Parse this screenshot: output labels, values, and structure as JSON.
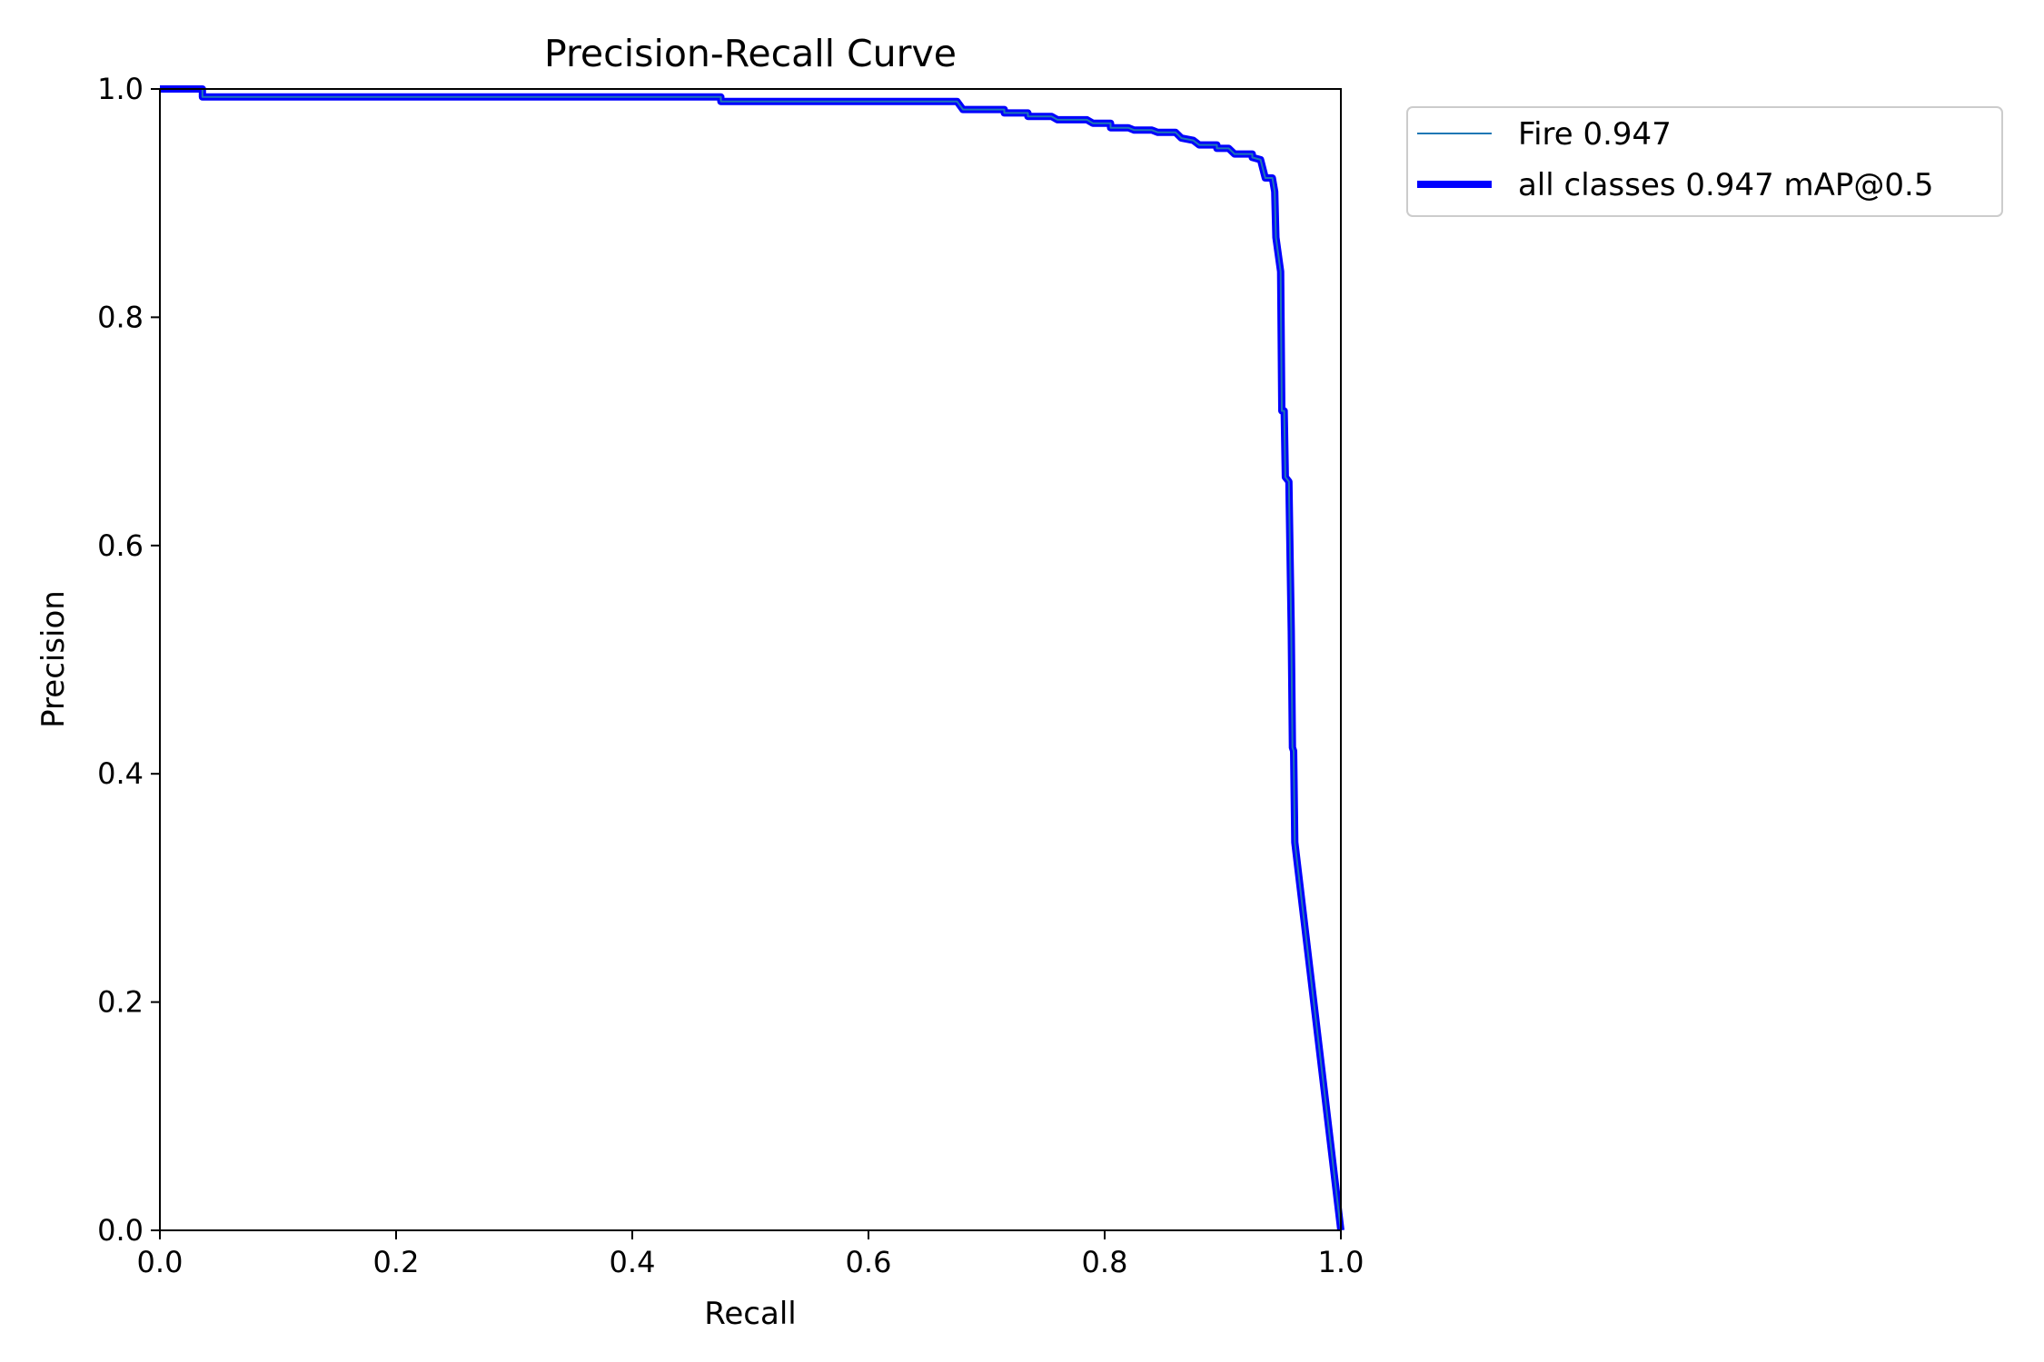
{
  "chart_data": {
    "type": "line",
    "title": "Precision-Recall Curve",
    "xlabel": "Recall",
    "ylabel": "Precision",
    "xlim": [
      0,
      1
    ],
    "ylim": [
      0,
      1
    ],
    "xticks": [
      "0.0",
      "0.2",
      "0.4",
      "0.6",
      "0.8",
      "1.0"
    ],
    "yticks": [
      "0.0",
      "0.2",
      "0.4",
      "0.6",
      "0.8",
      "1.0"
    ],
    "grid": false,
    "legend_position": "outside-top-right",
    "series": [
      {
        "name": "Fire 0.947",
        "color": "#1f77b4",
        "style": "thin",
        "points": [
          [
            0.0,
            1.0
          ],
          [
            0.036,
            1.0
          ],
          [
            0.036,
            0.993
          ],
          [
            0.475,
            0.993
          ],
          [
            0.475,
            0.989
          ],
          [
            0.675,
            0.989
          ],
          [
            0.68,
            0.982
          ],
          [
            0.715,
            0.982
          ],
          [
            0.715,
            0.979
          ],
          [
            0.735,
            0.979
          ],
          [
            0.735,
            0.976
          ],
          [
            0.755,
            0.976
          ],
          [
            0.76,
            0.973
          ],
          [
            0.785,
            0.973
          ],
          [
            0.79,
            0.97
          ],
          [
            0.805,
            0.97
          ],
          [
            0.805,
            0.966
          ],
          [
            0.82,
            0.966
          ],
          [
            0.825,
            0.964
          ],
          [
            0.84,
            0.964
          ],
          [
            0.845,
            0.962
          ],
          [
            0.86,
            0.962
          ],
          [
            0.865,
            0.957
          ],
          [
            0.875,
            0.955
          ],
          [
            0.88,
            0.951
          ],
          [
            0.895,
            0.951
          ],
          [
            0.895,
            0.948
          ],
          [
            0.905,
            0.948
          ],
          [
            0.91,
            0.943
          ],
          [
            0.925,
            0.943
          ],
          [
            0.925,
            0.94
          ],
          [
            0.932,
            0.938
          ],
          [
            0.934,
            0.93
          ],
          [
            0.936,
            0.922
          ],
          [
            0.942,
            0.922
          ],
          [
            0.944,
            0.91
          ],
          [
            0.945,
            0.87
          ],
          [
            0.947,
            0.855
          ],
          [
            0.949,
            0.84
          ],
          [
            0.95,
            0.718
          ],
          [
            0.952,
            0.718
          ],
          [
            0.953,
            0.66
          ],
          [
            0.956,
            0.656
          ],
          [
            0.958,
            0.525
          ],
          [
            0.959,
            0.423
          ],
          [
            0.96,
            0.42
          ],
          [
            0.961,
            0.34
          ],
          [
            1.0,
            0.0
          ]
        ]
      },
      {
        "name": "all classes 0.947 mAP@0.5",
        "color": "#0000ff",
        "style": "thick",
        "points": [
          [
            0.0,
            1.0
          ],
          [
            0.036,
            1.0
          ],
          [
            0.036,
            0.993
          ],
          [
            0.475,
            0.993
          ],
          [
            0.475,
            0.989
          ],
          [
            0.675,
            0.989
          ],
          [
            0.68,
            0.982
          ],
          [
            0.715,
            0.982
          ],
          [
            0.715,
            0.979
          ],
          [
            0.735,
            0.979
          ],
          [
            0.735,
            0.976
          ],
          [
            0.755,
            0.976
          ],
          [
            0.76,
            0.973
          ],
          [
            0.785,
            0.973
          ],
          [
            0.79,
            0.97
          ],
          [
            0.805,
            0.97
          ],
          [
            0.805,
            0.966
          ],
          [
            0.82,
            0.966
          ],
          [
            0.825,
            0.964
          ],
          [
            0.84,
            0.964
          ],
          [
            0.845,
            0.962
          ],
          [
            0.86,
            0.962
          ],
          [
            0.865,
            0.957
          ],
          [
            0.875,
            0.955
          ],
          [
            0.88,
            0.951
          ],
          [
            0.895,
            0.951
          ],
          [
            0.895,
            0.948
          ],
          [
            0.905,
            0.948
          ],
          [
            0.91,
            0.943
          ],
          [
            0.925,
            0.943
          ],
          [
            0.925,
            0.94
          ],
          [
            0.932,
            0.938
          ],
          [
            0.934,
            0.93
          ],
          [
            0.936,
            0.922
          ],
          [
            0.942,
            0.922
          ],
          [
            0.944,
            0.91
          ],
          [
            0.945,
            0.87
          ],
          [
            0.947,
            0.855
          ],
          [
            0.949,
            0.84
          ],
          [
            0.95,
            0.718
          ],
          [
            0.952,
            0.718
          ],
          [
            0.953,
            0.66
          ],
          [
            0.956,
            0.656
          ],
          [
            0.958,
            0.525
          ],
          [
            0.959,
            0.423
          ],
          [
            0.96,
            0.42
          ],
          [
            0.961,
            0.34
          ],
          [
            1.0,
            0.0
          ]
        ]
      }
    ]
  }
}
